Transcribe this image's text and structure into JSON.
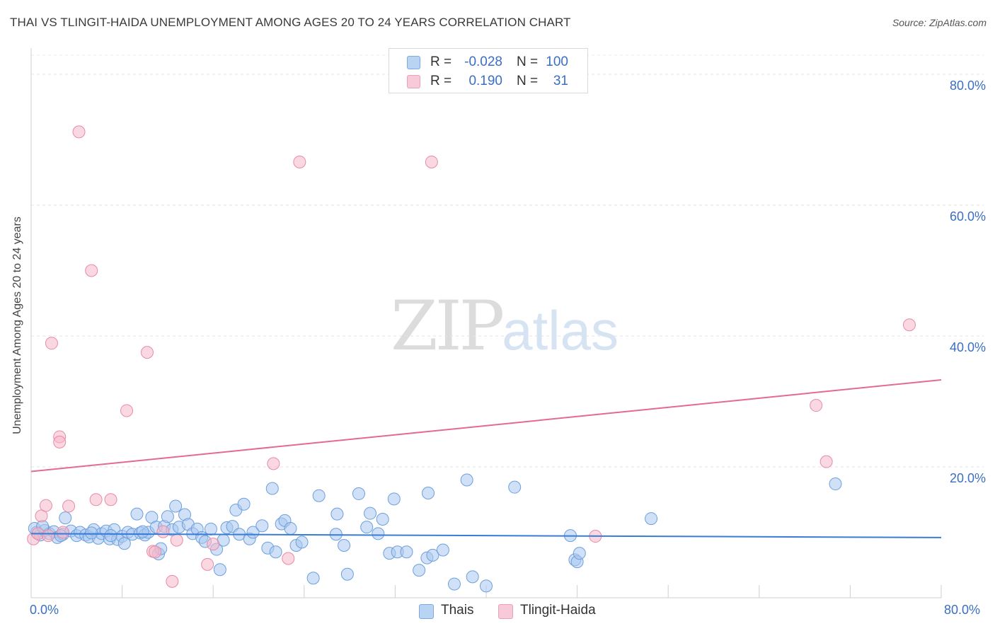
{
  "header": {
    "title": "THAI VS TLINGIT-HAIDA UNEMPLOYMENT AMONG AGES 20 TO 24 YEARS CORRELATION CHART",
    "source": "Source: ZipAtlas.com"
  },
  "watermark": {
    "zip": "ZIP",
    "atlas": "atlas"
  },
  "legend": {
    "rows": [
      {
        "r_label": "R =",
        "r_value": "-0.028",
        "n_label": "N =",
        "n_value": "100",
        "color": "#a9c8f0"
      },
      {
        "r_label": "R =",
        "r_value": "0.190",
        "n_label": "N =",
        "n_value": "31",
        "color": "#f5b8cb"
      }
    ]
  },
  "bottom_legend": {
    "thais": "Thais",
    "tlingit": "Tlingit-Haida"
  },
  "axes": {
    "x_min_label": "0.0%",
    "x_max_label": "80.0%"
  },
  "chart_data": {
    "type": "scatter",
    "title": "THAI VS TLINGIT-HAIDA UNEMPLOYMENT AMONG AGES 20 TO 24 YEARS CORRELATION CHART",
    "xlabel": "",
    "ylabel": "Unemployment Among Ages 20 to 24 years",
    "xlim": [
      0,
      80
    ],
    "ylim": [
      0,
      84
    ],
    "y_ticks": [
      20,
      40,
      60,
      80
    ],
    "y_tick_labels": [
      "20.0%",
      "40.0%",
      "60.0%",
      "80.0%"
    ],
    "colors": {
      "thais": "#a9c8f0",
      "thais_edge": "#6d9fdc",
      "thais_line": "#3a7bd5",
      "tlingit": "#f5b8cb",
      "tlingit_edge": "#e88aa8",
      "tlingit_line": "#e46a93"
    },
    "series": [
      {
        "name": "Thais",
        "trend": [
          [
            0,
            9.8
          ],
          [
            80,
            9.2
          ]
        ],
        "points": [
          [
            0.5,
            10.0
          ],
          [
            0.8,
            9.6
          ],
          [
            1.2,
            10.3
          ],
          [
            1.6,
            9.8
          ],
          [
            2.0,
            10.1
          ],
          [
            2.3,
            9.2
          ],
          [
            2.8,
            9.7
          ],
          [
            3.0,
            12.2
          ],
          [
            3.5,
            10.2
          ],
          [
            4.0,
            9.5
          ],
          [
            4.3,
            10.0
          ],
          [
            4.8,
            9.6
          ],
          [
            5.1,
            9.3
          ],
          [
            5.5,
            10.4
          ],
          [
            5.9,
            9.1
          ],
          [
            6.2,
            9.8
          ],
          [
            6.6,
            10.2
          ],
          [
            6.9,
            9.0
          ],
          [
            7.3,
            10.4
          ],
          [
            7.6,
            8.9
          ],
          [
            8.0,
            9.4
          ],
          [
            8.2,
            8.3
          ],
          [
            8.5,
            10.0
          ],
          [
            8.9,
            9.7
          ],
          [
            9.3,
            12.8
          ],
          [
            9.6,
            9.9
          ],
          [
            10.0,
            9.6
          ],
          [
            10.3,
            10.0
          ],
          [
            10.6,
            12.3
          ],
          [
            11.0,
            10.8
          ],
          [
            11.2,
            6.7
          ],
          [
            11.4,
            7.5
          ],
          [
            11.7,
            10.9
          ],
          [
            12.0,
            12.4
          ],
          [
            12.4,
            10.4
          ],
          [
            12.7,
            14.0
          ],
          [
            13.0,
            10.8
          ],
          [
            13.5,
            12.7
          ],
          [
            13.8,
            11.2
          ],
          [
            14.2,
            9.8
          ],
          [
            14.6,
            10.5
          ],
          [
            15.0,
            9.2
          ],
          [
            15.3,
            8.6
          ],
          [
            15.8,
            10.5
          ],
          [
            16.3,
            7.4
          ],
          [
            16.6,
            4.3
          ],
          [
            16.9,
            8.8
          ],
          [
            17.2,
            10.7
          ],
          [
            17.7,
            10.9
          ],
          [
            18.0,
            13.4
          ],
          [
            18.3,
            9.7
          ],
          [
            18.7,
            14.3
          ],
          [
            19.2,
            9.0
          ],
          [
            19.5,
            10.0
          ],
          [
            20.3,
            11.0
          ],
          [
            20.8,
            7.6
          ],
          [
            21.2,
            16.7
          ],
          [
            21.5,
            7.0
          ],
          [
            22.0,
            11.3
          ],
          [
            22.3,
            11.8
          ],
          [
            22.8,
            10.6
          ],
          [
            23.3,
            8.0
          ],
          [
            23.8,
            8.5
          ],
          [
            24.8,
            3.0
          ],
          [
            25.3,
            15.6
          ],
          [
            26.8,
            9.7
          ],
          [
            26.9,
            12.8
          ],
          [
            27.5,
            8.0
          ],
          [
            27.8,
            3.6
          ],
          [
            28.8,
            15.9
          ],
          [
            29.5,
            10.8
          ],
          [
            29.8,
            12.9
          ],
          [
            30.5,
            9.8
          ],
          [
            30.9,
            12.0
          ],
          [
            31.5,
            6.8
          ],
          [
            31.9,
            15.1
          ],
          [
            32.2,
            7.0
          ],
          [
            33.0,
            7.0
          ],
          [
            34.1,
            4.2
          ],
          [
            34.8,
            6.1
          ],
          [
            35.3,
            6.5
          ],
          [
            34.9,
            16.0
          ],
          [
            36.2,
            7.3
          ],
          [
            37.2,
            2.1
          ],
          [
            38.3,
            18.0
          ],
          [
            38.8,
            3.2
          ],
          [
            40.0,
            1.8
          ],
          [
            42.5,
            16.9
          ],
          [
            47.4,
            9.5
          ],
          [
            47.8,
            5.8
          ],
          [
            48.0,
            5.5
          ],
          [
            48.2,
            6.8
          ],
          [
            54.5,
            12.1
          ],
          [
            70.7,
            17.4
          ],
          [
            0.3,
            10.6
          ],
          [
            1.0,
            10.9
          ],
          [
            2.6,
            9.5
          ],
          [
            5.3,
            9.9
          ],
          [
            7.0,
            9.5
          ],
          [
            9.8,
            10.1
          ]
        ]
      },
      {
        "name": "Tlingit-Haida",
        "trend": [
          [
            0,
            19.3
          ],
          [
            80,
            33.3
          ]
        ],
        "points": [
          [
            0.2,
            9.0
          ],
          [
            0.6,
            9.8
          ],
          [
            0.9,
            12.5
          ],
          [
            1.3,
            14.1
          ],
          [
            1.8,
            38.9
          ],
          [
            2.5,
            24.6
          ],
          [
            2.5,
            23.8
          ],
          [
            2.8,
            10.0
          ],
          [
            3.3,
            14.0
          ],
          [
            4.2,
            71.2
          ],
          [
            5.3,
            50.0
          ],
          [
            5.7,
            15.0
          ],
          [
            7.0,
            15.0
          ],
          [
            8.4,
            28.6
          ],
          [
            10.2,
            37.5
          ],
          [
            10.7,
            7.1
          ],
          [
            10.9,
            7.0
          ],
          [
            11.6,
            10.1
          ],
          [
            12.4,
            2.5
          ],
          [
            12.8,
            8.8
          ],
          [
            15.5,
            5.1
          ],
          [
            16.0,
            8.2
          ],
          [
            21.3,
            20.5
          ],
          [
            22.6,
            6.0
          ],
          [
            23.6,
            66.6
          ],
          [
            35.2,
            66.6
          ],
          [
            49.6,
            9.4
          ],
          [
            69.0,
            29.4
          ],
          [
            69.9,
            20.8
          ],
          [
            77.2,
            41.7
          ],
          [
            1.5,
            9.5
          ]
        ]
      }
    ]
  }
}
